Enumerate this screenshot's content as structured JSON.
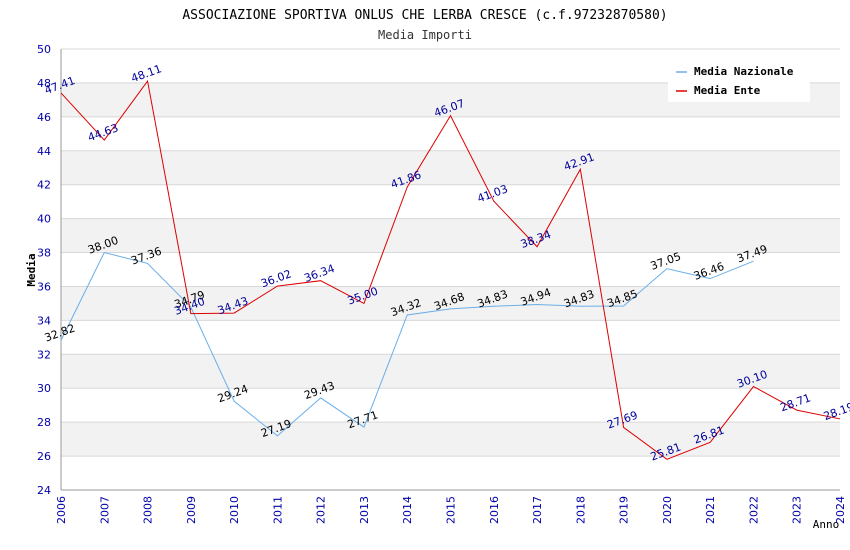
{
  "chart_data": {
    "type": "line",
    "title": "ASSOCIAZIONE SPORTIVA ONLUS CHE LERBA CRESCE (c.f.97232870580)",
    "subtitle": "Media Importi",
    "xlabel": "Anno",
    "ylabel": "Media",
    "ylim": [
      24,
      50
    ],
    "yticks": [
      "24",
      "26",
      "28",
      "30",
      "32",
      "34",
      "36",
      "38",
      "40",
      "42",
      "44",
      "46",
      "48",
      "50"
    ],
    "categories": [
      "2006",
      "2007",
      "2008",
      "2009",
      "2010",
      "2011",
      "2012",
      "2013",
      "2014",
      "2015",
      "2016",
      "2017",
      "2018",
      "2019",
      "2020",
      "2021",
      "2022",
      "2023",
      "2024"
    ],
    "legend_position": "top-right",
    "series": [
      {
        "name": "Media Nazionale",
        "color": "#6aaee8",
        "label_color": "#000000",
        "values": [
          32.82,
          38.0,
          37.36,
          34.79,
          29.24,
          27.19,
          29.43,
          27.71,
          34.32,
          34.68,
          34.83,
          34.94,
          34.83,
          34.85,
          37.05,
          36.46,
          37.49,
          null,
          null
        ],
        "labels": [
          "32.82",
          "38.00",
          "37.36",
          "34.79",
          "29.24",
          "27.19",
          "29.43",
          "27.71",
          "34.32",
          "34.68",
          "34.83",
          "34.94",
          "34.83",
          "34.85",
          "37.05",
          "36.46",
          "37.49",
          "",
          ""
        ]
      },
      {
        "name": "Media Ente",
        "color": "#dd0000",
        "label_color": "#000099",
        "values": [
          47.41,
          44.63,
          48.11,
          34.4,
          34.43,
          36.02,
          36.34,
          35.0,
          41.86,
          46.07,
          41.03,
          38.34,
          42.91,
          27.69,
          25.81,
          26.81,
          30.1,
          28.71,
          28.19
        ],
        "labels": [
          "47.41",
          "44.63",
          "48.11",
          "34.40",
          "34.43",
          "36.02",
          "36.34",
          "35.00",
          "41.86",
          "46.07",
          "41.03",
          "38.34",
          "42.91",
          "27.69",
          "25.81",
          "26.81",
          "30.10",
          "28.71",
          "28.19"
        ]
      }
    ],
    "colors": {
      "band": "#f2f2f2",
      "grid": "#d8d8d8",
      "axis": "#999999",
      "tick_label": "#0000aa",
      "title": "#000000",
      "subtitle": "#333333"
    }
  }
}
